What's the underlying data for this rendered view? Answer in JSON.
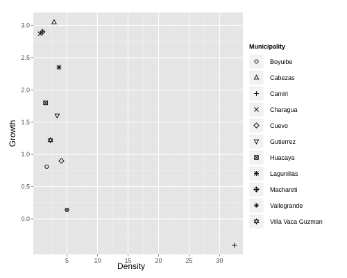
{
  "chart_data": {
    "type": "scatter",
    "xlabel": "Density",
    "ylabel": "Growth",
    "xlim": [
      -0.5,
      33.8
    ],
    "ylim": [
      -0.55,
      3.2
    ],
    "x_ticks": [
      5,
      10,
      15,
      20,
      25,
      30
    ],
    "y_ticks": [
      0.0,
      0.5,
      1.0,
      1.5,
      2.0,
      2.5,
      3.0
    ],
    "grid": true,
    "legend": {
      "title": "Municipality",
      "position": "right"
    },
    "series": [
      {
        "name": "Boyuibe",
        "shape": "circle",
        "points": [
          {
            "x": 1.7,
            "y": 0.81
          }
        ]
      },
      {
        "name": "Cabezas",
        "shape": "triangle-up",
        "points": [
          {
            "x": 2.9,
            "y": 3.05
          }
        ]
      },
      {
        "name": "Camiri",
        "shape": "plus",
        "points": [
          {
            "x": 32.4,
            "y": -0.41
          }
        ]
      },
      {
        "name": "Charagua",
        "shape": "cross",
        "points": [
          {
            "x": 0.6,
            "y": 2.87
          }
        ]
      },
      {
        "name": "Cuevo",
        "shape": "diamond",
        "points": [
          {
            "x": 4.1,
            "y": 0.9
          }
        ]
      },
      {
        "name": "Gutierrez",
        "shape": "triangle-down",
        "points": [
          {
            "x": 3.4,
            "y": 1.6
          }
        ]
      },
      {
        "name": "Huacaya",
        "shape": "square-cross",
        "points": [
          {
            "x": 1.5,
            "y": 1.8
          }
        ]
      },
      {
        "name": "Lagunillas",
        "shape": "asterisk",
        "points": [
          {
            "x": 3.7,
            "y": 2.35
          }
        ]
      },
      {
        "name": "Machareti",
        "shape": "diamond-plus",
        "points": [
          {
            "x": 1.0,
            "y": 2.9
          }
        ]
      },
      {
        "name": "Vallegrande",
        "shape": "circle-plus",
        "points": [
          {
            "x": 5.0,
            "y": 0.14
          }
        ]
      },
      {
        "name": "Villa Vaca Guzman",
        "shape": "hexagram",
        "points": [
          {
            "x": 2.3,
            "y": 1.22
          }
        ]
      }
    ]
  }
}
